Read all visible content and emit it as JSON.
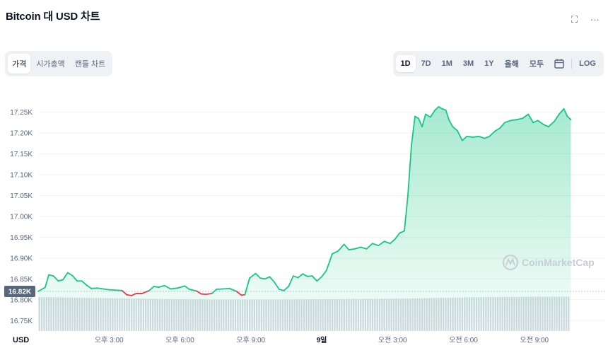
{
  "title": "Bitcoin 대 USD 차트",
  "icons": {
    "fullscreen": "⛶",
    "more": "···"
  },
  "tabs": [
    {
      "label": "가격",
      "active": true
    },
    {
      "label": "시가총액",
      "active": false
    },
    {
      "label": "캔들 차트",
      "active": false
    }
  ],
  "ranges": [
    {
      "label": "1D",
      "active": true
    },
    {
      "label": "7D",
      "active": false
    },
    {
      "label": "1M",
      "active": false
    },
    {
      "label": "3M",
      "active": false
    },
    {
      "label": "1Y",
      "active": false
    },
    {
      "label": "올해",
      "active": false
    },
    {
      "label": "모두",
      "active": false
    }
  ],
  "log_label": "LOG",
  "currency_label": "USD",
  "watermark": "CoinMarketCap",
  "colors": {
    "up": "#16c784",
    "down": "#ea3943",
    "volume": "#d5d9e0",
    "badge": "#58667e"
  },
  "chart_data": {
    "type": "area",
    "y_unit": "USD",
    "ylim": [
      16725,
      17290
    ],
    "yticks": [
      {
        "label": "17.25K",
        "v": 17250
      },
      {
        "label": "17.20K",
        "v": 17200
      },
      {
        "label": "17.15K",
        "v": 17150
      },
      {
        "label": "17.10K",
        "v": 17100
      },
      {
        "label": "17.05K",
        "v": 17050
      },
      {
        "label": "17.00K",
        "v": 17000
      },
      {
        "label": "16.95K",
        "v": 16950
      },
      {
        "label": "16.90K",
        "v": 16900
      },
      {
        "label": "16.85K",
        "v": 16850
      },
      {
        "label": "16.80K",
        "v": 16800
      },
      {
        "label": "16.75K",
        "v": 16750
      }
    ],
    "xlim": [
      0,
      24
    ],
    "xticks": [
      {
        "label": "오후 3:00",
        "t": 3,
        "bold": false
      },
      {
        "label": "오후 6:00",
        "t": 6,
        "bold": false
      },
      {
        "label": "오후 9:00",
        "t": 9,
        "bold": false
      },
      {
        "label": "9일",
        "t": 12,
        "bold": true
      },
      {
        "label": "오전 3:00",
        "t": 15,
        "bold": false
      },
      {
        "label": "오전 6:00",
        "t": 18,
        "bold": false
      },
      {
        "label": "오전 9:00",
        "t": 21,
        "bold": false
      }
    ],
    "reference_price": 16820,
    "reference_label": "16.82K",
    "points": [
      [
        0.0,
        16820
      ],
      [
        0.3,
        16830
      ],
      [
        0.45,
        16860
      ],
      [
        0.65,
        16857
      ],
      [
        0.85,
        16845
      ],
      [
        1.05,
        16848
      ],
      [
        1.25,
        16865
      ],
      [
        1.45,
        16858
      ],
      [
        1.65,
        16845
      ],
      [
        1.85,
        16845
      ],
      [
        2.05,
        16835
      ],
      [
        2.25,
        16827
      ],
      [
        2.5,
        16828
      ],
      [
        2.75,
        16826
      ],
      [
        3.0,
        16824
      ],
      [
        3.3,
        16823
      ],
      [
        3.55,
        16822
      ],
      [
        3.75,
        16812
      ],
      [
        3.95,
        16810
      ],
      [
        4.15,
        16815
      ],
      [
        4.4,
        16815
      ],
      [
        4.7,
        16822
      ],
      [
        4.9,
        16832
      ],
      [
        5.1,
        16830
      ],
      [
        5.35,
        16834
      ],
      [
        5.6,
        16826
      ],
      [
        5.9,
        16828
      ],
      [
        6.2,
        16833
      ],
      [
        6.4,
        16825
      ],
      [
        6.7,
        16821
      ],
      [
        6.9,
        16814
      ],
      [
        7.1,
        16813
      ],
      [
        7.35,
        16815
      ],
      [
        7.55,
        16825
      ],
      [
        7.8,
        16826
      ],
      [
        8.1,
        16827
      ],
      [
        8.4,
        16820
      ],
      [
        8.6,
        16811
      ],
      [
        8.75,
        16812
      ],
      [
        8.95,
        16852
      ],
      [
        9.2,
        16863
      ],
      [
        9.4,
        16852
      ],
      [
        9.6,
        16850
      ],
      [
        9.8,
        16855
      ],
      [
        10.0,
        16842
      ],
      [
        10.2,
        16825
      ],
      [
        10.4,
        16822
      ],
      [
        10.6,
        16832
      ],
      [
        10.8,
        16857
      ],
      [
        11.0,
        16853
      ],
      [
        11.2,
        16862
      ],
      [
        11.4,
        16856
      ],
      [
        11.6,
        16857
      ],
      [
        11.8,
        16845
      ],
      [
        12.0,
        16855
      ],
      [
        12.2,
        16870
      ],
      [
        12.45,
        16910
      ],
      [
        12.7,
        16917
      ],
      [
        12.95,
        16933
      ],
      [
        13.15,
        16920
      ],
      [
        13.4,
        16922
      ],
      [
        13.65,
        16926
      ],
      [
        13.9,
        16922
      ],
      [
        14.15,
        16935
      ],
      [
        14.4,
        16930
      ],
      [
        14.65,
        16940
      ],
      [
        14.9,
        16935
      ],
      [
        15.1,
        16945
      ],
      [
        15.3,
        16960
      ],
      [
        15.5,
        16965
      ],
      [
        15.65,
        17050
      ],
      [
        15.8,
        17170
      ],
      [
        15.95,
        17240
      ],
      [
        16.1,
        17235
      ],
      [
        16.25,
        17215
      ],
      [
        16.4,
        17245
      ],
      [
        16.6,
        17238
      ],
      [
        16.8,
        17255
      ],
      [
        16.95,
        17263
      ],
      [
        17.1,
        17258
      ],
      [
        17.25,
        17255
      ],
      [
        17.4,
        17230
      ],
      [
        17.55,
        17215
      ],
      [
        17.75,
        17205
      ],
      [
        17.95,
        17182
      ],
      [
        18.15,
        17192
      ],
      [
        18.4,
        17190
      ],
      [
        18.65,
        17192
      ],
      [
        18.9,
        17187
      ],
      [
        19.1,
        17192
      ],
      [
        19.35,
        17205
      ],
      [
        19.55,
        17212
      ],
      [
        19.75,
        17225
      ],
      [
        20.0,
        17230
      ],
      [
        20.25,
        17232
      ],
      [
        20.5,
        17235
      ],
      [
        20.75,
        17245
      ],
      [
        20.95,
        17225
      ],
      [
        21.15,
        17230
      ],
      [
        21.4,
        17220
      ],
      [
        21.6,
        17215
      ],
      [
        21.85,
        17228
      ],
      [
        22.05,
        17245
      ],
      [
        22.25,
        17258
      ],
      [
        22.4,
        17240
      ],
      [
        22.55,
        17232
      ]
    ],
    "volume_x": [
      0,
      2,
      4,
      6,
      8,
      10,
      12,
      14,
      16,
      17,
      19,
      21,
      22.55
    ],
    "volume_rel": [
      0.96,
      0.94,
      0.92,
      0.9,
      0.89,
      0.89,
      0.9,
      0.91,
      0.92,
      0.94,
      0.96,
      0.97,
      0.97
    ]
  }
}
